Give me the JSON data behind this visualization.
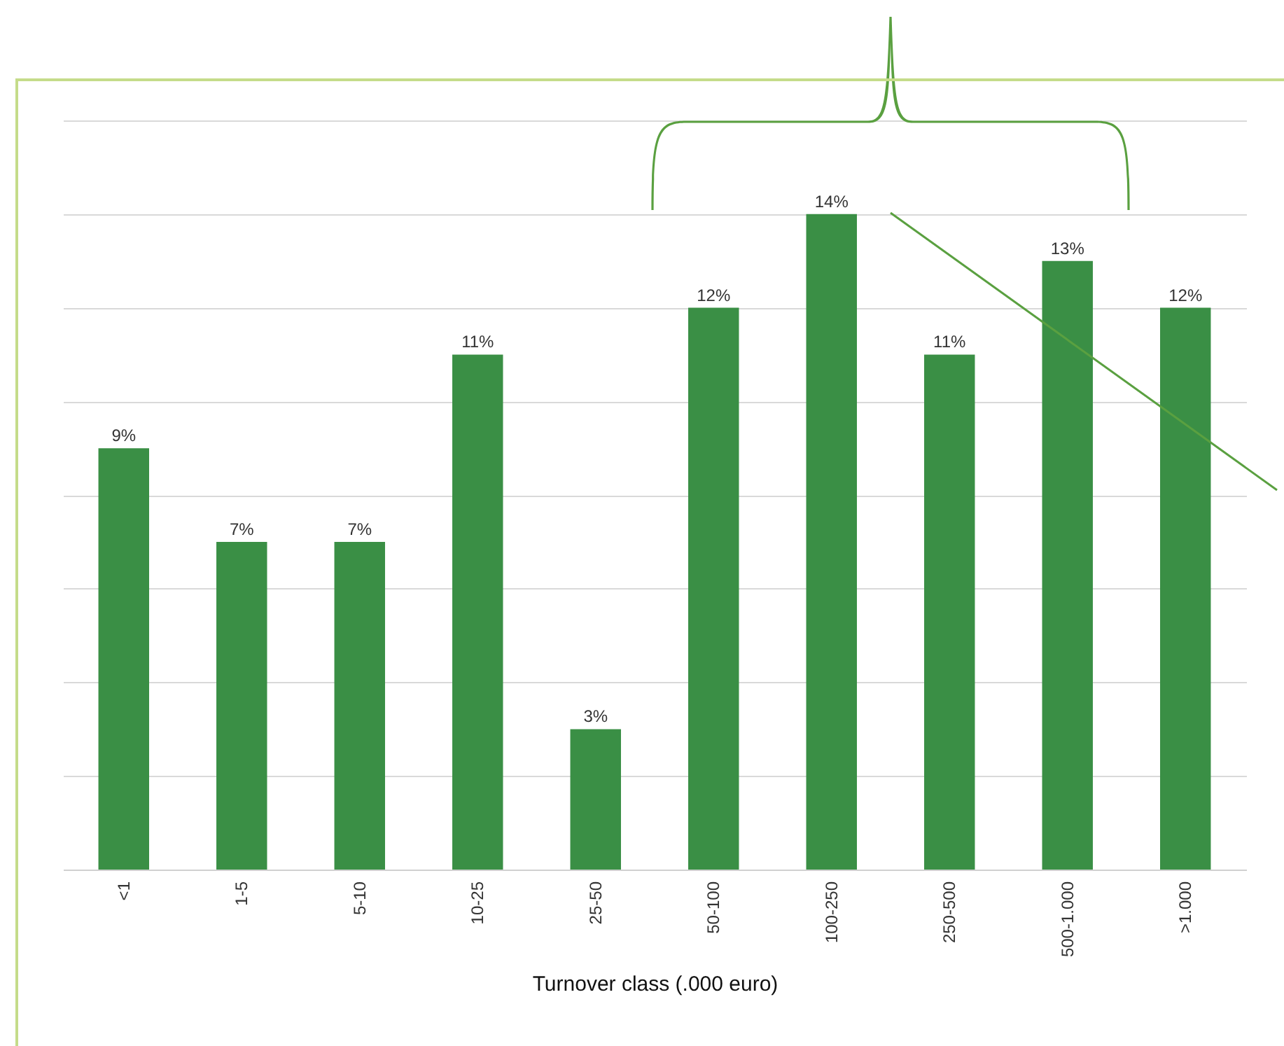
{
  "chart_data": {
    "type": "bar",
    "xlabel": "Turnover class (.000 euro)",
    "categories": [
      "<1",
      "1-5",
      "5-10",
      "10-25",
      "25-50",
      "50-100",
      "100-250",
      "250-500",
      "500-1.000",
      ">1.000"
    ],
    "values": [
      9,
      7,
      7,
      11,
      3,
      12,
      14,
      11,
      13,
      12
    ],
    "color": "#3a8f45",
    "ylim": [
      0,
      16
    ],
    "yticks": [
      {
        "value": 0,
        "label": null
      },
      {
        "value": 2,
        "label": null
      },
      {
        "value": 4,
        "label": null
      },
      {
        "value": 6,
        "label": null
      },
      {
        "value": 8,
        "label": null
      },
      {
        "value": 10,
        "label": null
      },
      {
        "value": 12,
        "label": null
      },
      {
        "value": 14,
        "label": null
      },
      {
        "value": 16,
        "label": null
      }
    ],
    "value_labels": [
      "9%",
      "7%",
      "7%",
      "11%",
      "3%",
      "12%",
      "14%",
      "11%",
      "13%",
      "12%"
    ],
    "grid": "y",
    "tick_labels": "x"
  }
}
